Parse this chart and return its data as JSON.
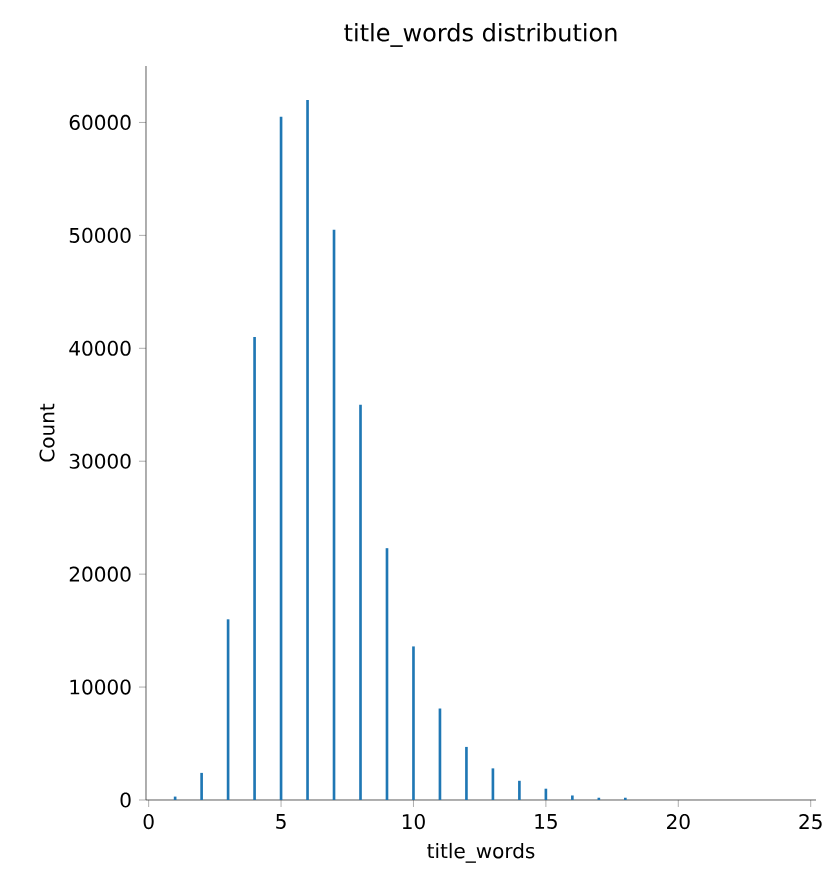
{
  "chart_data": {
    "type": "histogram",
    "title": "title_words distribution",
    "xlabel": "title_words",
    "ylabel": "Count",
    "bins": [
      0.95,
      1.05,
      1.95,
      2.05,
      2.95,
      3.05,
      3.95,
      4.05,
      4.95,
      5.05,
      5.95,
      6.05,
      6.95,
      7.05,
      7.95,
      8.05,
      8.95,
      9.05,
      9.95,
      10.05,
      10.95,
      11.05,
      11.95,
      12.05,
      12.95,
      13.05,
      13.95,
      14.05,
      14.95,
      15.05,
      15.95,
      16.05,
      16.95,
      17.05,
      17.95,
      18.05
    ],
    "values": [
      300,
      0,
      2400,
      0,
      16000,
      0,
      41000,
      0,
      60500,
      0,
      62000,
      0,
      50500,
      0,
      35000,
      0,
      22300,
      0,
      13600,
      0,
      8100,
      0,
      4700,
      0,
      2800,
      0,
      1700,
      0,
      1000,
      0,
      400,
      0,
      200,
      0,
      200
    ],
    "color": "#1f77b4",
    "xlim": [
      -0.1,
      25.2
    ],
    "ylim": [
      0,
      65000
    ],
    "xticks": [
      0,
      5,
      10,
      15,
      20,
      25
    ],
    "yticks": [
      0,
      10000,
      20000,
      30000,
      40000,
      50000,
      60000
    ],
    "grid": false
  }
}
